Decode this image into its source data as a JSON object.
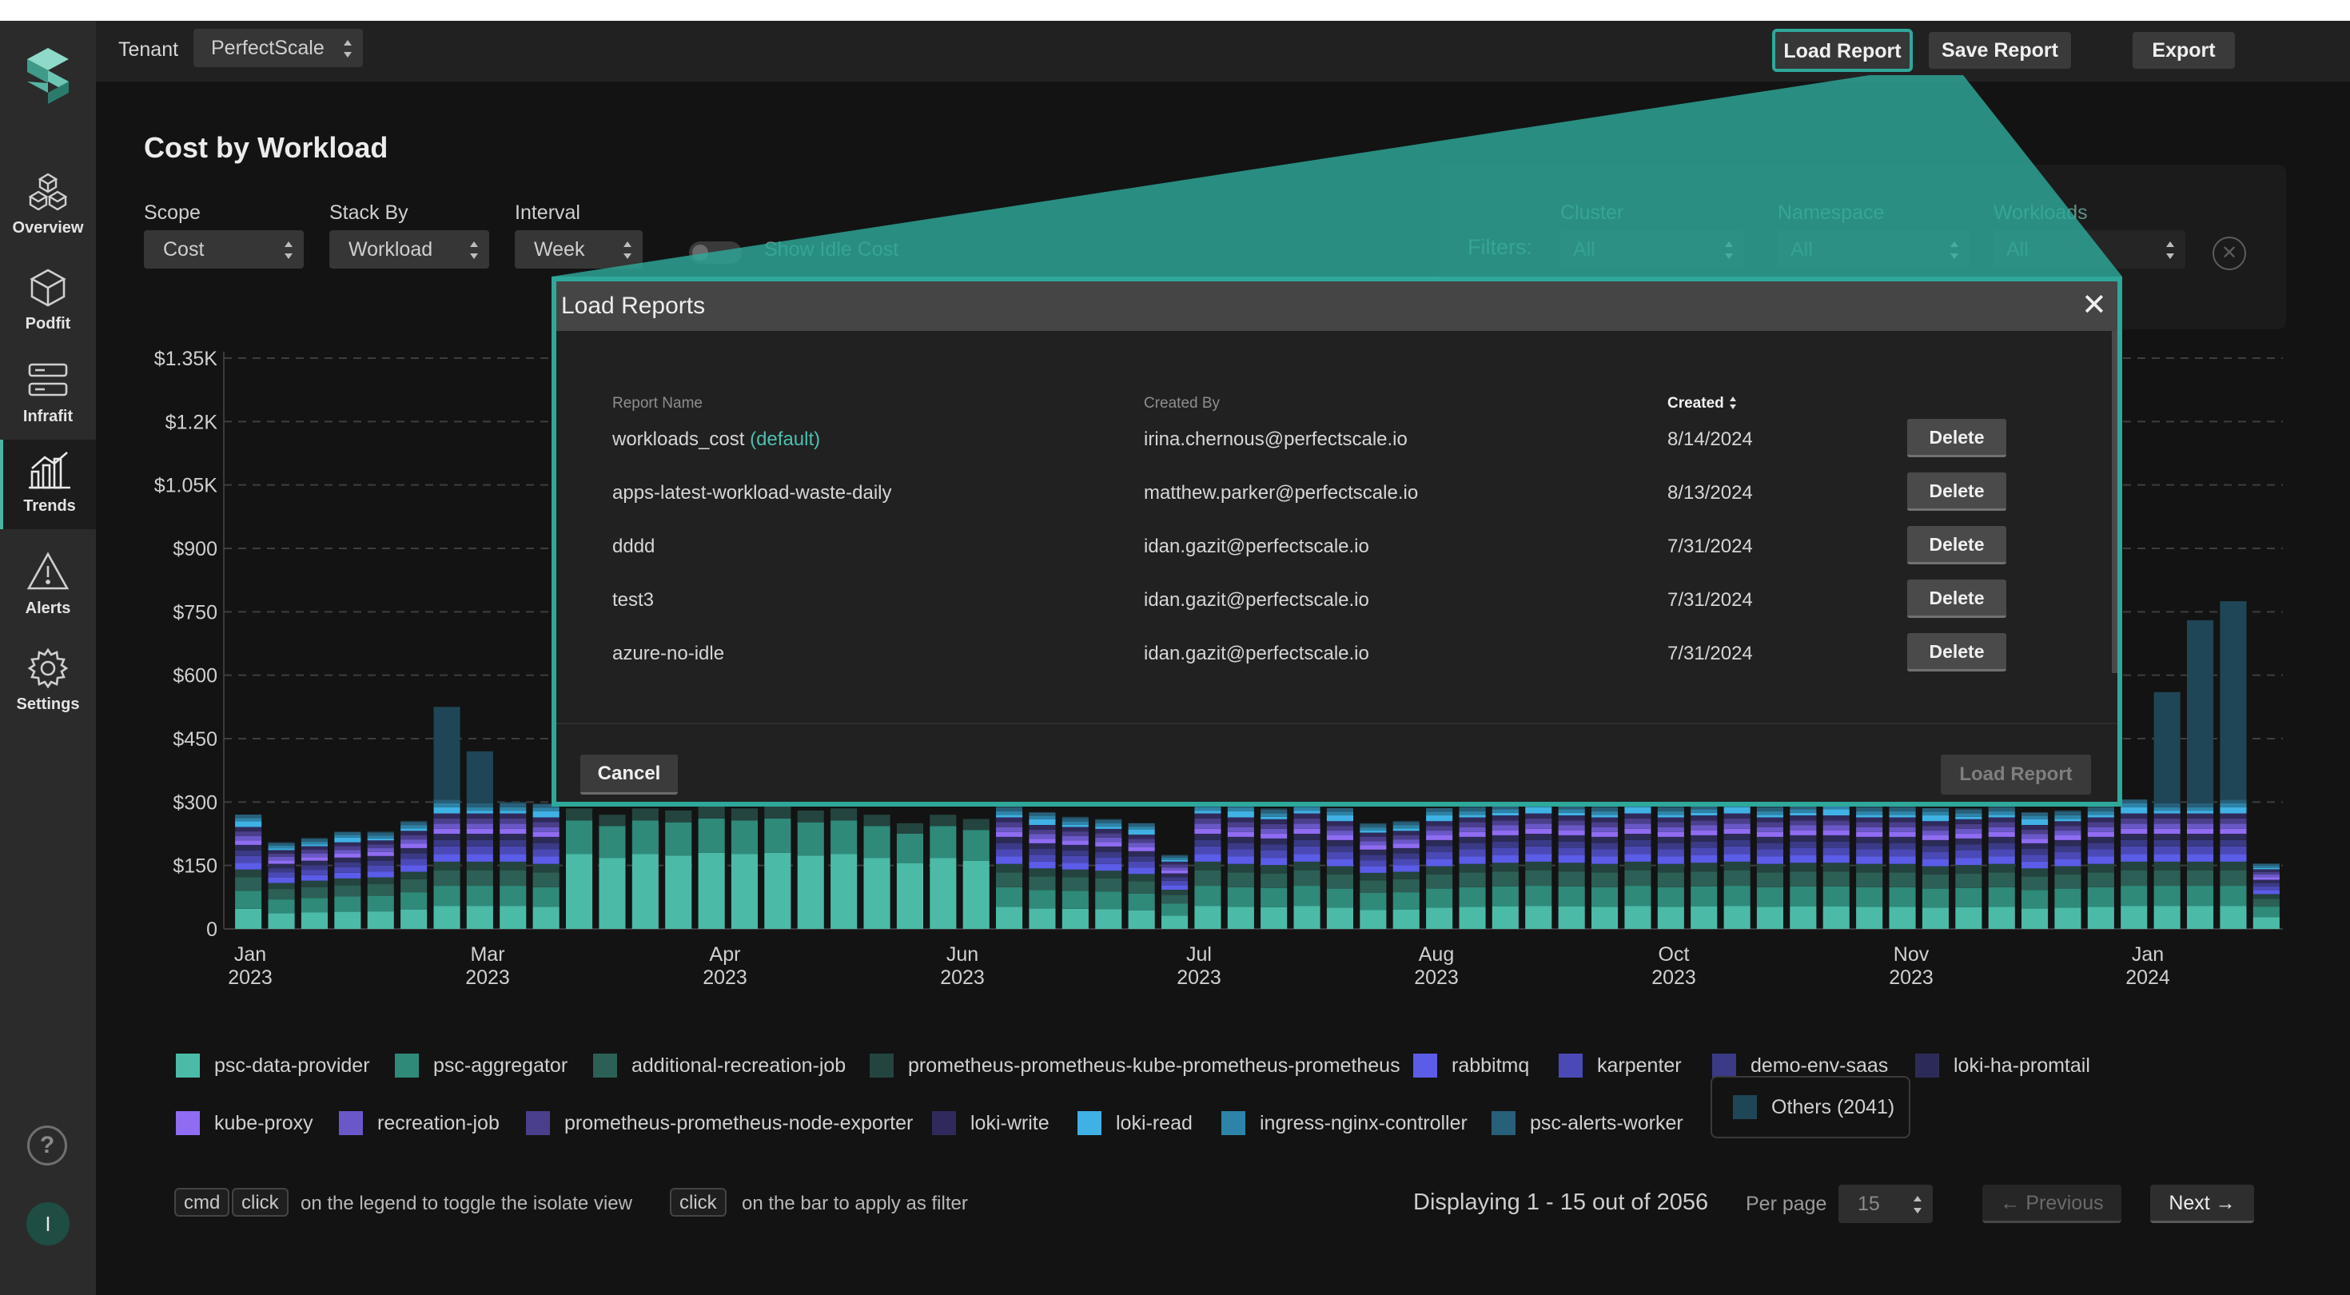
{
  "header": {
    "tenant_label": "Tenant",
    "tenant_value": "PerfectScale",
    "load_report": "Load Report",
    "save_report": "Save Report",
    "export": "Export"
  },
  "sidebar": {
    "items": [
      {
        "label": "Overview",
        "icon": "overview-icon"
      },
      {
        "label": "Podfit",
        "icon": "cube-icon"
      },
      {
        "label": "Infrafit",
        "icon": "server-icon"
      },
      {
        "label": "Trends",
        "icon": "chart-icon",
        "active": true
      },
      {
        "label": "Alerts",
        "icon": "warning-icon"
      },
      {
        "label": "Settings",
        "icon": "gear-icon"
      }
    ],
    "help": "?",
    "avatar": "I"
  },
  "page": {
    "title": "Cost by Workload",
    "scope_label": "Scope",
    "scope_value": "Cost",
    "stack_label": "Stack By",
    "stack_value": "Workload",
    "interval_label": "Interval",
    "interval_value": "Week",
    "idle_label": "Show Idle Cost",
    "filters_title": "Filters:",
    "cluster_label": "Cluster",
    "cluster_value": "All",
    "namespace_label": "Namespace",
    "namespace_value": "All",
    "workloads_label": "Workloads",
    "workloads_value": "All"
  },
  "chart_data": {
    "type": "bar",
    "stacked": true,
    "y_ticks": [
      "0",
      "$150",
      "$300",
      "$450",
      "$600",
      "$750",
      "$900",
      "$1.05K",
      "$1.2K",
      "$1.35K"
    ],
    "ylim": [
      0,
      1350
    ],
    "grid": true,
    "x_ticks": [
      {
        "month": "Jan",
        "year": "2023"
      },
      {
        "month": "Mar",
        "year": "2023"
      },
      {
        "month": "Apr",
        "year": "2023"
      },
      {
        "month": "Jun",
        "year": "2023"
      },
      {
        "month": "Jul",
        "year": "2023"
      },
      {
        "month": "Aug",
        "year": "2023"
      },
      {
        "month": "Oct",
        "year": "2023"
      },
      {
        "month": "Nov",
        "year": "2023"
      },
      {
        "month": "Jan",
        "year": "2024"
      }
    ],
    "weekly_totals": [
      265,
      205,
      215,
      225,
      230,
      255,
      525,
      420,
      300,
      290,
      285,
      270,
      285,
      280,
      290,
      285,
      290,
      280,
      285,
      270,
      250,
      270,
      260,
      290,
      270,
      265,
      260,
      245,
      175,
      300,
      290,
      285,
      300,
      280,
      250,
      255,
      280,
      290,
      295,
      300,
      295,
      290,
      300,
      290,
      295,
      300,
      290,
      295,
      295,
      290,
      290,
      280,
      285,
      290,
      270,
      280,
      290,
      300,
      560,
      730,
      775,
      155
    ],
    "series": [
      {
        "name": "psc-data-provider",
        "color": "#4bbba8"
      },
      {
        "name": "psc-aggregator",
        "color": "#2f8a7a"
      },
      {
        "name": "additional-recreation-job",
        "color": "#2c5f55"
      },
      {
        "name": "prometheus-prometheus-kube-prometheus-prometheus",
        "color": "#24443f"
      },
      {
        "name": "rabbitmq",
        "color": "#5b5ce8"
      },
      {
        "name": "karpenter",
        "color": "#4b49b5"
      },
      {
        "name": "demo-env-saas",
        "color": "#3a3a86"
      },
      {
        "name": "loki-ha-promtail",
        "color": "#2c2b58"
      },
      {
        "name": "kube-proxy",
        "color": "#8f6cf2"
      },
      {
        "name": "recreation-job",
        "color": "#6a58c8"
      },
      {
        "name": "prometheus-prometheus-node-exporter",
        "color": "#4a3f8c"
      },
      {
        "name": "loki-write",
        "color": "#302a5c"
      },
      {
        "name": "loki-read",
        "color": "#3fb1e4"
      },
      {
        "name": "ingress-nginx-controller",
        "color": "#2e84a8"
      },
      {
        "name": "psc-alerts-worker",
        "color": "#28607a"
      }
    ]
  },
  "legend": {
    "others_label": "Others (2041)",
    "others_color": "#1f4656"
  },
  "footer": {
    "kbd_cmd": "cmd",
    "kbd_click1": "click",
    "hint1": "on the legend to toggle the isolate view",
    "kbd_click2": "click",
    "hint2": "on the bar to apply as filter",
    "displaying": "Displaying 1 - 15 out of 2056",
    "per_page_label": "Per page",
    "per_page_value": "15",
    "previous": "Previous",
    "next": "Next"
  },
  "modal": {
    "title": "Load Reports",
    "columns": [
      "Report Name",
      "Created By",
      "Created"
    ],
    "rows": [
      {
        "name": "workloads_cost",
        "tag": "(default)",
        "created_by": "irina.chernous@perfectscale.io",
        "created": "8/14/2024"
      },
      {
        "name": "apps-latest-workload-waste-daily",
        "tag": "",
        "created_by": "matthew.parker@perfectscale.io",
        "created": "8/13/2024"
      },
      {
        "name": "dddd",
        "tag": "",
        "created_by": "idan.gazit@perfectscale.io",
        "created": "7/31/2024"
      },
      {
        "name": "test3",
        "tag": "",
        "created_by": "idan.gazit@perfectscale.io",
        "created": "7/31/2024"
      },
      {
        "name": "azure-no-idle",
        "tag": "",
        "created_by": "idan.gazit@perfectscale.io",
        "created": "7/31/2024"
      }
    ],
    "delete_label": "Delete",
    "cancel": "Cancel",
    "load": "Load Report"
  }
}
